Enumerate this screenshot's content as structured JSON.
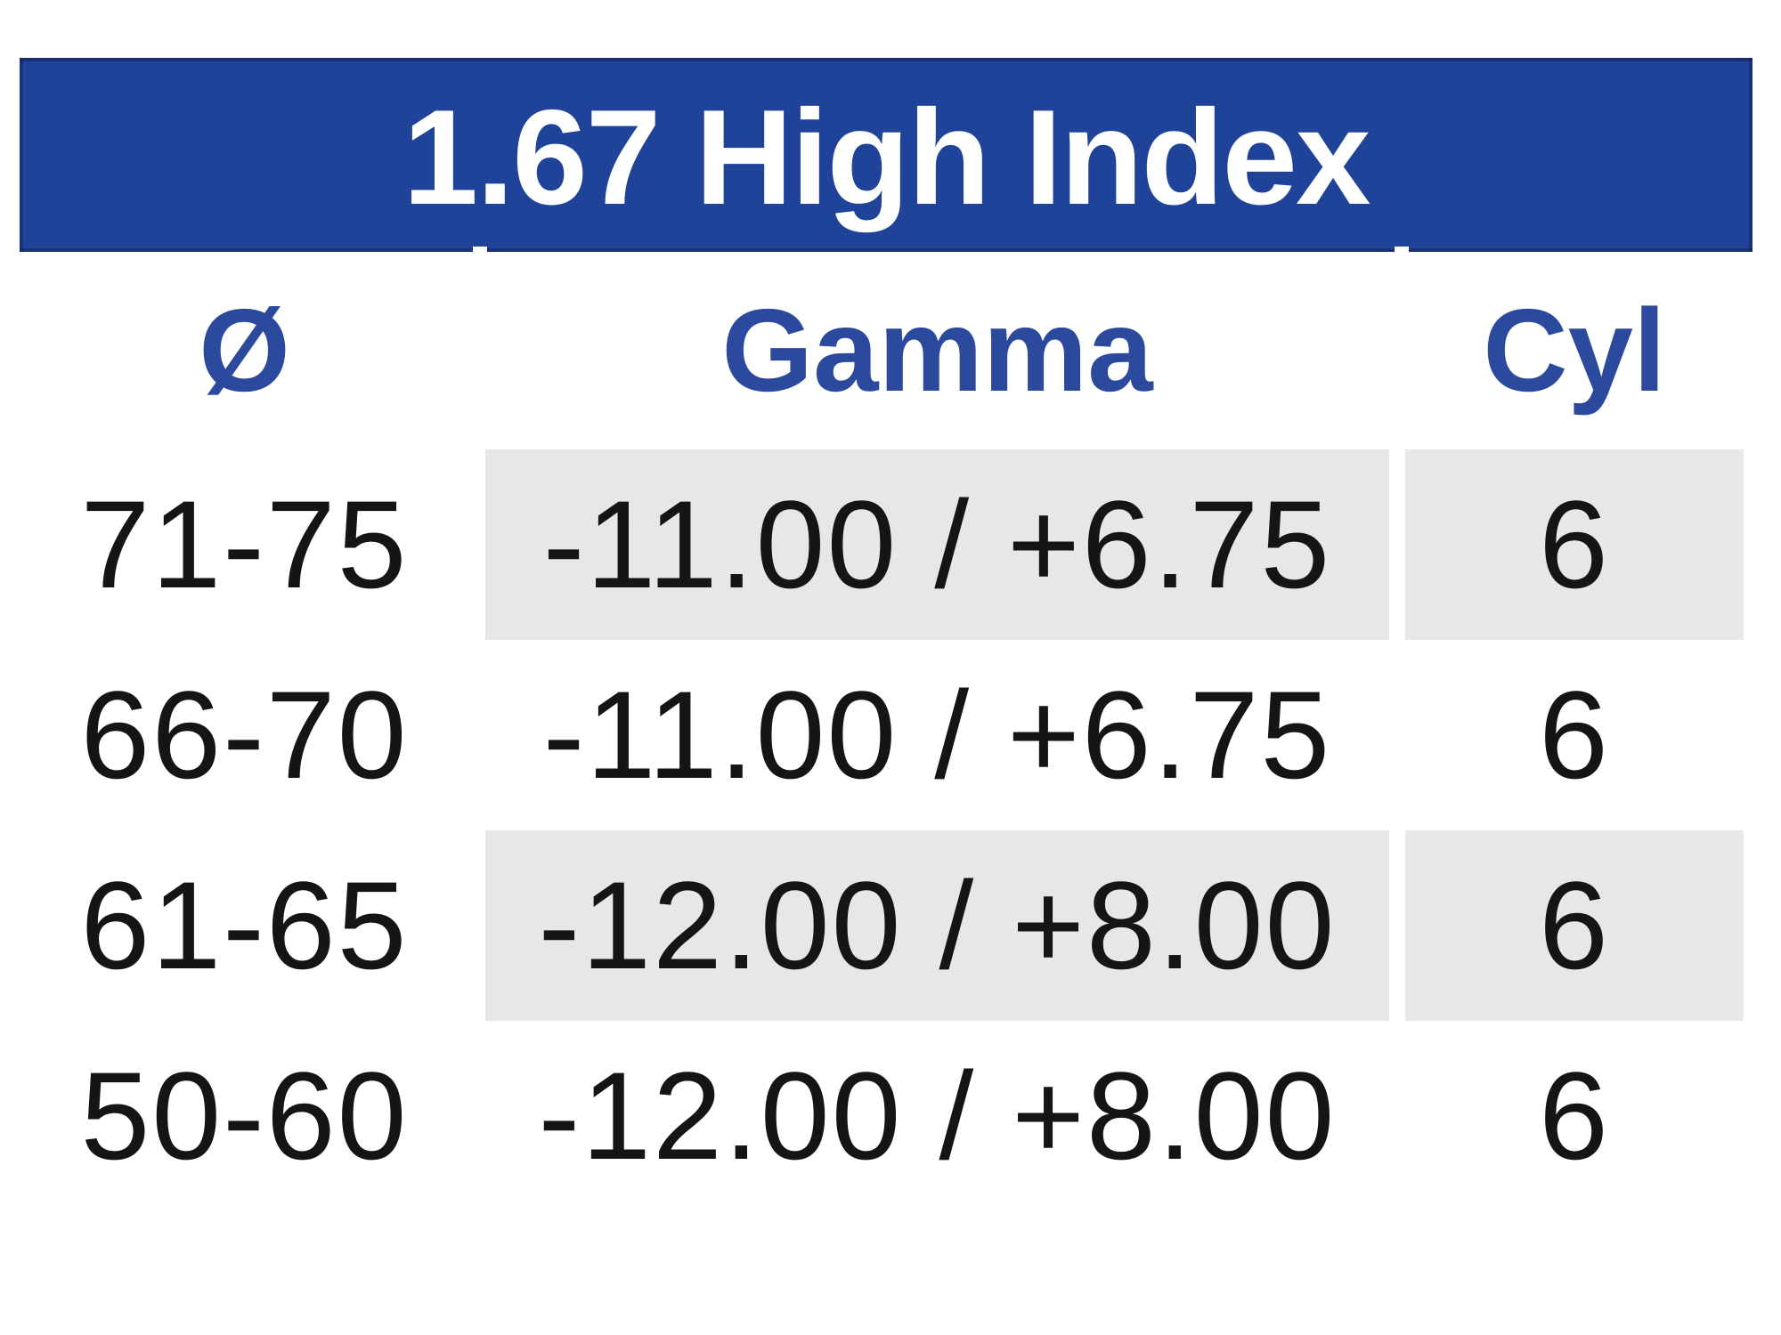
{
  "title": "1.67 High Index",
  "colors": {
    "page_bg": "#ffffff",
    "header_bg": "#1f4399",
    "header_text": "#ffffff",
    "column_header_text": "#2b4a9d",
    "row_shade": "#e7e7e7",
    "data_text": "#151515"
  },
  "table": {
    "columns": [
      {
        "key": "diameter",
        "label": "Ø"
      },
      {
        "key": "gamma",
        "label": "Gamma"
      },
      {
        "key": "cyl",
        "label": "Cyl"
      }
    ],
    "rows": [
      {
        "diameter": "71-75",
        "gamma": "-11.00 / +6.75",
        "cyl": "6",
        "shaded": true
      },
      {
        "diameter": "66-70",
        "gamma": "-11.00 / +6.75",
        "cyl": "6",
        "shaded": false
      },
      {
        "diameter": "61-65",
        "gamma": "-12.00 / +8.00",
        "cyl": "6",
        "shaded": true
      },
      {
        "diameter": "50-60",
        "gamma": "-12.00 / +8.00",
        "cyl": "6",
        "shaded": false
      }
    ]
  }
}
